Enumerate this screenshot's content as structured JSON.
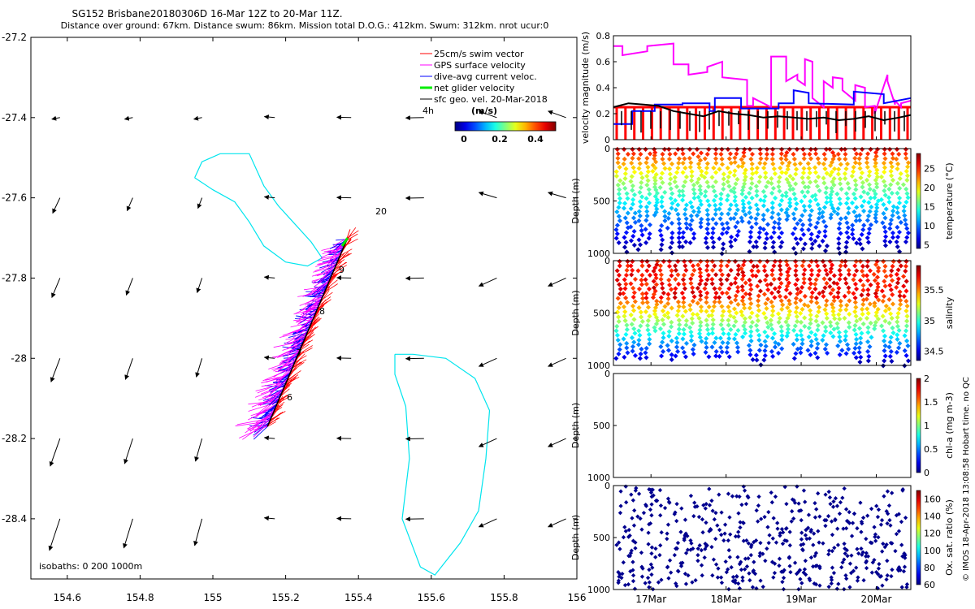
{
  "header": {
    "line1": "SG152 Brisbane20180306D 16-Mar 12Z to 20-Mar 11Z.",
    "line2": "Distance over ground: 67km. Distance swum: 86km. Mission total D.O.G.: 412km. Swum: 312km. nrot ucur:0"
  },
  "colors": {
    "swim": "#ff0000",
    "gps": "#ff00ff",
    "dive_avg": "#0000ff",
    "net": "#00ee00",
    "geo": "#000000",
    "isobath": "#00e5ee"
  },
  "map": {
    "legend": [
      {
        "label": "25cm/s swim vector",
        "color": "#ff0000"
      },
      {
        "label": "GPS surface velocity",
        "color": "#ff00ff"
      },
      {
        "label": "dive-avg current veloc.",
        "color": "#0000ff"
      },
      {
        "label": "net glider velocity",
        "color": "#00ee00"
      },
      {
        "label": "sfc geo. vel. 20-Mar-2018",
        "color": "#000000"
      }
    ],
    "time_note": "4h",
    "colorbar_title": "(m/s)",
    "colorbar_ticks": [
      "0",
      "0.2",
      "0.4"
    ],
    "isobath_label": "isobaths: 0   200  1000m",
    "contour_label": "20",
    "track_labels": [
      "9",
      "8",
      "7",
      "6"
    ]
  },
  "right_panel": {
    "xticks": [
      "17Mar",
      "18Mar",
      "19Mar",
      "20Mar"
    ],
    "side_note": "© IMOS 18-Apr-2018 13:08:58 Hobart time. no QC"
  },
  "chart_data": [
    {
      "type": "scatter",
      "name": "map",
      "xlim": [
        154.5,
        156.0
      ],
      "ylim": [
        -28.55,
        -27.2
      ],
      "xticks": [
        "154.6",
        "154.8",
        "155",
        "155.2",
        "155.4",
        "155.6",
        "155.8",
        "156"
      ],
      "yticks": [
        "-27.2",
        "-27.4",
        "-27.6",
        "-27.8",
        "-28",
        "-28.2",
        "-28.4"
      ],
      "track_start": [
        155.15,
        -28.17
      ],
      "track_end": [
        155.37,
        -27.7
      ],
      "isobath_north": [
        [
          154.95,
          -27.55
        ],
        [
          154.97,
          -27.51
        ],
        [
          155.02,
          -27.49
        ],
        [
          155.1,
          -27.49
        ],
        [
          155.14,
          -27.57
        ],
        [
          155.18,
          -27.62
        ],
        [
          155.22,
          -27.66
        ],
        [
          155.27,
          -27.71
        ],
        [
          155.3,
          -27.75
        ],
        [
          155.26,
          -27.77
        ],
        [
          155.2,
          -27.76
        ],
        [
          155.14,
          -27.72
        ],
        [
          155.1,
          -27.66
        ],
        [
          155.06,
          -27.61
        ],
        [
          155.0,
          -27.58
        ],
        [
          154.95,
          -27.55
        ]
      ],
      "isobath_south": [
        [
          155.5,
          -27.99
        ],
        [
          155.55,
          -27.99
        ],
        [
          155.64,
          -28.0
        ],
        [
          155.72,
          -28.05
        ],
        [
          155.76,
          -28.13
        ],
        [
          155.75,
          -28.25
        ],
        [
          155.73,
          -28.38
        ],
        [
          155.68,
          -28.46
        ],
        [
          155.61,
          -28.54
        ],
        [
          155.57,
          -28.52
        ],
        [
          155.52,
          -28.4
        ],
        [
          155.54,
          -28.25
        ],
        [
          155.53,
          -28.12
        ],
        [
          155.5,
          -28.04
        ],
        [
          155.5,
          -27.99
        ]
      ]
    },
    {
      "type": "line",
      "name": "velocity",
      "ylabel": "velocity magnitude (m/s)",
      "xlim": [
        16.5,
        20.46
      ],
      "ylim": [
        0,
        0.8
      ],
      "yticks": [
        "0",
        "0.2",
        "0.4",
        "0.6",
        "0.8"
      ],
      "series": [
        {
          "x": [
            16.5,
            16.62,
            16.62,
            16.95,
            16.95,
            17.3,
            17.3,
            17.5,
            17.5,
            17.75,
            17.75,
            17.95,
            17.95,
            18.28,
            18.28,
            18.36,
            18.36,
            18.6,
            18.6,
            18.8,
            18.8,
            18.95,
            18.95,
            19.05,
            19.05,
            19.15,
            19.15,
            19.3,
            19.3,
            19.42,
            19.42,
            19.55,
            19.55,
            19.72,
            19.72,
            19.85,
            19.85,
            19.98,
            19.98,
            20.15,
            20.15,
            20.25,
            20.25,
            20.33,
            20.33,
            20.46
          ],
          "y": [
            0.72,
            0.72,
            0.65,
            0.68,
            0.72,
            0.74,
            0.58,
            0.58,
            0.5,
            0.52,
            0.56,
            0.6,
            0.48,
            0.46,
            0.26,
            0.26,
            0.32,
            0.25,
            0.64,
            0.64,
            0.45,
            0.5,
            0.46,
            0.42,
            0.62,
            0.6,
            0.32,
            0.25,
            0.45,
            0.4,
            0.48,
            0.47,
            0.38,
            0.3,
            0.42,
            0.4,
            0.25,
            0.26,
            0.2,
            0.5,
            0.45,
            0.27,
            0.3,
            0.25,
            0.28,
            0.3
          ]
        },
        {
          "x": [
            16.5,
            16.75,
            16.75,
            17.05,
            17.05,
            17.42,
            17.42,
            17.78,
            17.78,
            17.85,
            17.85,
            18.2,
            18.2,
            18.7,
            18.7,
            18.9,
            18.9,
            19.1,
            19.1,
            19.7,
            19.7,
            20.1,
            20.1,
            20.46
          ],
          "y": [
            0.12,
            0.12,
            0.22,
            0.22,
            0.27,
            0.27,
            0.28,
            0.28,
            0.22,
            0.22,
            0.32,
            0.32,
            0.24,
            0.24,
            0.28,
            0.28,
            0.38,
            0.36,
            0.28,
            0.27,
            0.37,
            0.35,
            0.28,
            0.32
          ]
        },
        {
          "x": [
            16.5,
            16.7,
            16.9,
            17.1,
            17.3,
            17.5,
            17.7,
            17.9,
            18.1,
            18.3,
            18.5,
            18.7,
            18.9,
            19.1,
            19.3,
            19.5,
            19.7,
            19.9,
            20.1,
            20.3,
            20.46
          ],
          "y": [
            0.25,
            0.28,
            0.27,
            0.26,
            0.22,
            0.2,
            0.18,
            0.22,
            0.2,
            0.19,
            0.17,
            0.18,
            0.17,
            0.16,
            0.17,
            0.15,
            0.16,
            0.18,
            0.15,
            0.17,
            0.19
          ]
        }
      ],
      "swim_level": 0.25
    },
    {
      "type": "scatter",
      "name": "temperature",
      "ylabel": "Depth (m)",
      "clabel": "temperature (°C)",
      "ylim": [
        0,
        1000
      ],
      "yticks": [
        "0",
        "500",
        "1000"
      ],
      "cticks": [
        "5",
        "10",
        "15",
        "20",
        "25"
      ],
      "crange": [
        4,
        29
      ]
    },
    {
      "type": "scatter",
      "name": "salinity",
      "ylabel": "Depth (m)",
      "clabel": "salinity",
      "ylim": [
        0,
        1000
      ],
      "yticks": [
        "0",
        "500",
        "1000"
      ],
      "cticks": [
        "34.5",
        "35",
        "35.5"
      ],
      "crange": [
        34.35,
        35.9
      ]
    },
    {
      "type": "scatter",
      "name": "chla",
      "ylabel": "Depth (m)",
      "clabel": "chl-a (mg m-3)",
      "ylim": [
        0,
        1000
      ],
      "yticks": [
        "0",
        "500",
        "1000"
      ],
      "cticks": [
        "0",
        "0.5",
        "1",
        "1.5",
        "2"
      ],
      "crange": [
        0,
        2
      ]
    },
    {
      "type": "scatter",
      "name": "oxygen",
      "ylabel": "Depth (m)",
      "clabel": "Ox. sat. ratio (%)",
      "ylim": [
        0,
        1000
      ],
      "yticks": [
        "0",
        "500",
        "1000"
      ],
      "cticks": [
        "60",
        "80",
        "100",
        "120",
        "140",
        "160"
      ],
      "crange": [
        60,
        170
      ]
    }
  ]
}
